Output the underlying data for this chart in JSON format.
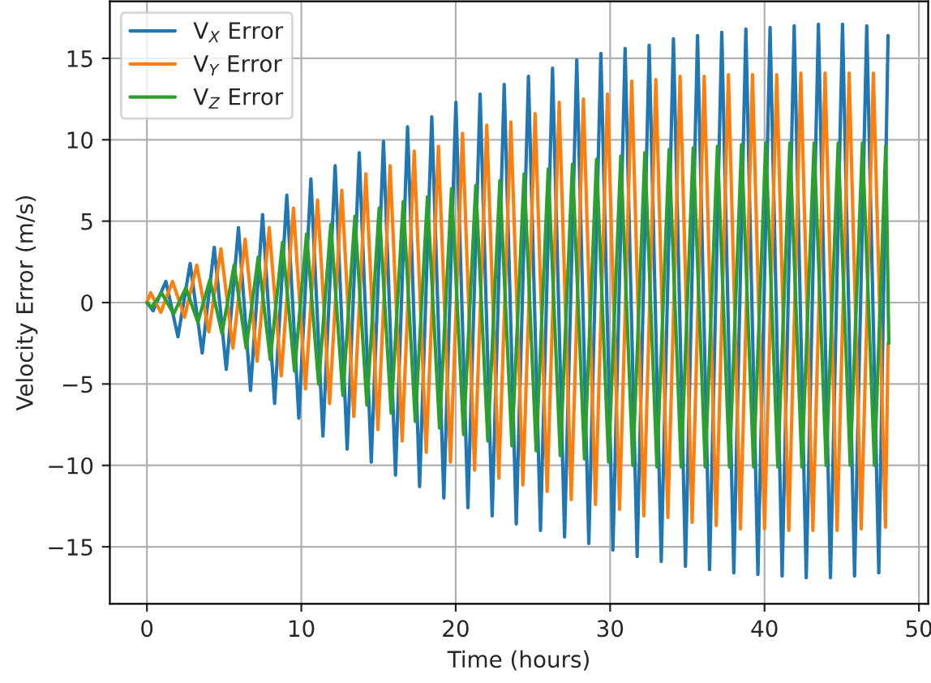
{
  "chart_data": {
    "type": "line",
    "xlabel": "Time (hours)",
    "ylabel": "Velocity Error (m/s)",
    "xlim": [
      -2.4,
      50.6
    ],
    "ylim": [
      -18.5,
      18.5
    ],
    "xticks": [
      0,
      10,
      20,
      30,
      40,
      50
    ],
    "yticks": [
      {
        "value": -15,
        "label": "−15"
      },
      {
        "value": -10,
        "label": "−10"
      },
      {
        "value": -5,
        "label": "−5"
      },
      0,
      5,
      10,
      15
    ],
    "grid": true,
    "legend": "top left",
    "line_style": "solid",
    "marker": "none",
    "series": [
      {
        "name": "V$_{X}$ Error",
        "color": "#1f77b4",
        "x": [
          0,
          0.4,
          1.23,
          2.01,
          2.8,
          3.58,
          4.36,
          5.14,
          5.93,
          6.71,
          7.49,
          8.27,
          9.06,
          9.84,
          10.62,
          11.4,
          12.19,
          12.97,
          13.75,
          14.53,
          15.32,
          16.1,
          16.88,
          17.66,
          18.45,
          19.23,
          20.01,
          20.79,
          21.58,
          22.36,
          23.14,
          23.92,
          24.71,
          25.49,
          26.27,
          27.05,
          27.84,
          28.62,
          29.4,
          30.18,
          30.97,
          31.75,
          32.53,
          33.31,
          34.1,
          34.88,
          35.66,
          36.44,
          37.23,
          38.01,
          38.79,
          39.57,
          40.36,
          41.14,
          41.92,
          42.7,
          43.49,
          44.27,
          45.05,
          45.83,
          46.62,
          47.4,
          48.0
        ],
        "values": [
          0,
          -0.5,
          1.3,
          -2.1,
          2.4,
          -3.1,
          3.4,
          -4.1,
          4.6,
          -5.4,
          5.4,
          -6.2,
          6.6,
          -7.1,
          7.6,
          -8.2,
          8.4,
          -9.0,
          9.2,
          -9.8,
          9.9,
          -10.6,
          10.8,
          -11.3,
          11.4,
          -12.0,
          12.3,
          -12.6,
          12.8,
          -13.1,
          13.4,
          -13.6,
          13.9,
          -14.0,
          14.4,
          -14.4,
          14.9,
          -14.8,
          15.3,
          -15.2,
          15.6,
          -15.6,
          15.8,
          -15.9,
          16.2,
          -16.2,
          16.4,
          -16.4,
          16.6,
          -16.6,
          16.8,
          -16.7,
          16.9,
          -16.8,
          17.0,
          -16.9,
          17.1,
          -16.9,
          17.1,
          -16.8,
          17.0,
          -16.6,
          16.4
        ]
      },
      {
        "name": "V$_{Y}$ Error",
        "color": "#ff7f0e",
        "x": [
          0,
          0.24,
          0.9,
          1.66,
          2.44,
          3.23,
          4.01,
          4.79,
          5.57,
          6.36,
          7.14,
          7.92,
          8.7,
          9.49,
          10.27,
          11.05,
          11.83,
          12.62,
          13.4,
          14.18,
          14.96,
          15.75,
          16.53,
          17.31,
          18.09,
          18.88,
          19.66,
          20.44,
          21.22,
          22.01,
          22.79,
          23.57,
          24.35,
          25.14,
          25.92,
          26.7,
          27.48,
          28.27,
          29.05,
          29.83,
          30.61,
          31.4,
          32.18,
          32.96,
          33.74,
          34.53,
          35.31,
          36.09,
          36.87,
          37.66,
          38.44,
          39.22,
          40.0,
          40.79,
          41.57,
          42.35,
          43.13,
          43.92,
          44.7,
          45.48,
          46.26,
          47.05,
          47.83,
          48.0
        ],
        "values": [
          0,
          0.6,
          -0.6,
          1.3,
          -0.9,
          2.3,
          -1.8,
          3.3,
          -2.8,
          3.9,
          -3.6,
          4.6,
          -4.5,
          5.8,
          -5.3,
          6.3,
          -6.2,
          6.9,
          -7.0,
          7.9,
          -7.8,
          8.4,
          -8.5,
          9.3,
          -9.2,
          9.6,
          -9.8,
          10.4,
          -10.3,
          10.9,
          -10.8,
          11.1,
          -11.2,
          11.6,
          -11.6,
          12.3,
          -12.1,
          12.5,
          -12.4,
          12.8,
          -12.7,
          13.6,
          -13.1,
          13.7,
          -13.2,
          13.9,
          -13.5,
          13.9,
          -13.7,
          14.0,
          -13.9,
          14.0,
          -13.9,
          14.0,
          -14.0,
          14.1,
          -14.0,
          14.1,
          -14.0,
          14.1,
          -13.9,
          14.1,
          -13.8,
          -2.5
        ]
      },
      {
        "name": "V$_{Z}$ Error",
        "color": "#2ca02c",
        "x": [
          0,
          0.3,
          0.95,
          1.73,
          2.52,
          3.3,
          4.08,
          4.86,
          5.65,
          6.43,
          7.21,
          7.99,
          8.78,
          9.56,
          10.34,
          11.12,
          11.91,
          12.69,
          13.47,
          14.25,
          15.04,
          15.82,
          16.6,
          17.38,
          18.17,
          18.95,
          19.73,
          20.51,
          21.3,
          22.08,
          22.86,
          23.64,
          24.43,
          25.21,
          25.99,
          26.77,
          27.56,
          28.34,
          29.12,
          29.9,
          30.69,
          31.47,
          32.25,
          33.03,
          33.82,
          34.6,
          35.38,
          36.16,
          36.95,
          37.73,
          38.51,
          39.29,
          40.08,
          40.86,
          41.64,
          42.42,
          43.21,
          43.99,
          44.77,
          45.55,
          46.34,
          47.12,
          47.85,
          48.05
        ],
        "values": [
          0,
          -0.3,
          0.6,
          -0.7,
          0.9,
          -1.2,
          1.4,
          -1.9,
          2.3,
          -2.8,
          2.8,
          -3.5,
          3.7,
          -4.2,
          4.2,
          -5.0,
          4.8,
          -5.7,
          5.3,
          -6.3,
          5.8,
          -6.8,
          6.2,
          -7.3,
          6.5,
          -7.7,
          7.0,
          -8.1,
          7.2,
          -8.5,
          7.5,
          -8.8,
          7.9,
          -9.1,
          8.2,
          -9.4,
          8.5,
          -9.6,
          8.8,
          -9.8,
          9.0,
          -10.0,
          9.2,
          -10.1,
          9.4,
          -10.1,
          9.5,
          -10.1,
          9.6,
          -10.1,
          9.7,
          -10.1,
          9.8,
          -10.1,
          9.8,
          -10.1,
          9.8,
          -10.0,
          9.8,
          -10.0,
          9.8,
          -10.0,
          9.6,
          -2.5
        ]
      }
    ]
  }
}
